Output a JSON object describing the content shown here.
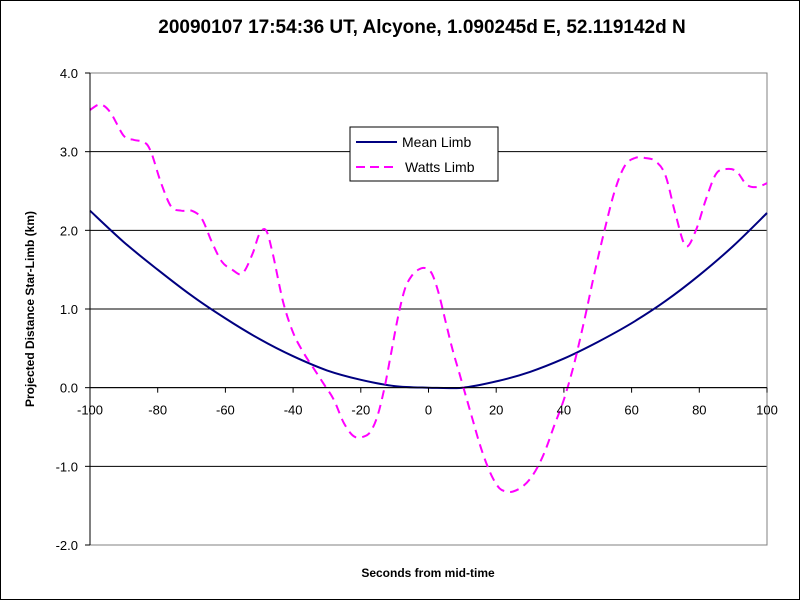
{
  "chart_data": {
    "type": "line",
    "title": "20090107 17:54:36 UT, Alcyone, 1.090245d E, 52.119142d N",
    "xlabel": "Seconds from mid-time",
    "ylabel": "Projected Distance Star-Limb (km)",
    "xlim": [
      -100,
      100
    ],
    "ylim": [
      -2.0,
      4.0
    ],
    "x_ticks": [
      -100,
      -80,
      -60,
      -40,
      -20,
      0,
      20,
      40,
      60,
      80,
      100
    ],
    "x_tick_labels": [
      "-100",
      "-80",
      "-60",
      "-40",
      "-20",
      "0",
      "20",
      "40",
      "60",
      "80",
      "100"
    ],
    "y_ticks": [
      -2,
      -1,
      0,
      1,
      2,
      3,
      4
    ],
    "y_tick_labels": [
      "-2.0",
      "-1.0",
      "0.0",
      "1.0",
      "2.0",
      "3.0",
      "4.0"
    ],
    "grid": "horizontal major gridlines",
    "legend_position": "upper-middle",
    "series": [
      {
        "name": "Mean Limb",
        "color": "#000080",
        "style": "solid",
        "x": [
          -100,
          -90,
          -80,
          -70,
          -60,
          -50,
          -40,
          -30,
          -20,
          -10,
          0,
          10,
          20,
          30,
          40,
          50,
          60,
          70,
          80,
          90,
          100
        ],
        "values": [
          2.25,
          1.85,
          1.5,
          1.17,
          0.88,
          0.62,
          0.4,
          0.22,
          0.1,
          0.02,
          0.0,
          0.0,
          0.08,
          0.2,
          0.37,
          0.58,
          0.82,
          1.1,
          1.43,
          1.8,
          2.22
        ]
      },
      {
        "name": "Watts Limb",
        "color": "#ff00ff",
        "style": "dashed",
        "x": [
          -100,
          -97,
          -94,
          -90,
          -87,
          -84,
          -82,
          -79,
          -76,
          -73,
          -70,
          -67,
          -64,
          -61,
          -58,
          -55,
          -52,
          -50,
          -48,
          -46,
          -43,
          -40,
          -37,
          -34,
          -31,
          -28,
          -25,
          -22,
          -19,
          -17,
          -15,
          -13,
          -11,
          -9,
          -7,
          -5,
          -3,
          -1,
          1,
          3,
          5,
          7,
          9,
          11,
          13,
          15,
          17,
          19,
          21,
          23,
          25,
          28,
          31,
          34,
          37,
          40,
          43,
          46,
          49,
          52,
          55,
          58,
          61,
          64,
          67,
          70,
          73,
          76,
          79,
          82,
          85,
          88,
          91,
          94,
          97,
          100
        ],
        "values": [
          3.53,
          3.6,
          3.5,
          3.2,
          3.15,
          3.12,
          3.0,
          2.6,
          2.3,
          2.25,
          2.25,
          2.15,
          1.85,
          1.6,
          1.5,
          1.45,
          1.7,
          1.95,
          2.0,
          1.7,
          1.1,
          0.7,
          0.45,
          0.25,
          0.05,
          -0.15,
          -0.45,
          -0.62,
          -0.62,
          -0.55,
          -0.35,
          0.0,
          0.45,
          0.9,
          1.25,
          1.42,
          1.5,
          1.52,
          1.45,
          1.2,
          0.85,
          0.5,
          0.2,
          -0.1,
          -0.4,
          -0.7,
          -0.95,
          -1.15,
          -1.28,
          -1.32,
          -1.32,
          -1.25,
          -1.1,
          -0.85,
          -0.5,
          -0.15,
          0.3,
          0.85,
          1.45,
          2.0,
          2.5,
          2.82,
          2.92,
          2.92,
          2.88,
          2.7,
          2.2,
          1.8,
          2.0,
          2.4,
          2.72,
          2.78,
          2.75,
          2.58,
          2.55,
          2.6
        ]
      }
    ]
  }
}
